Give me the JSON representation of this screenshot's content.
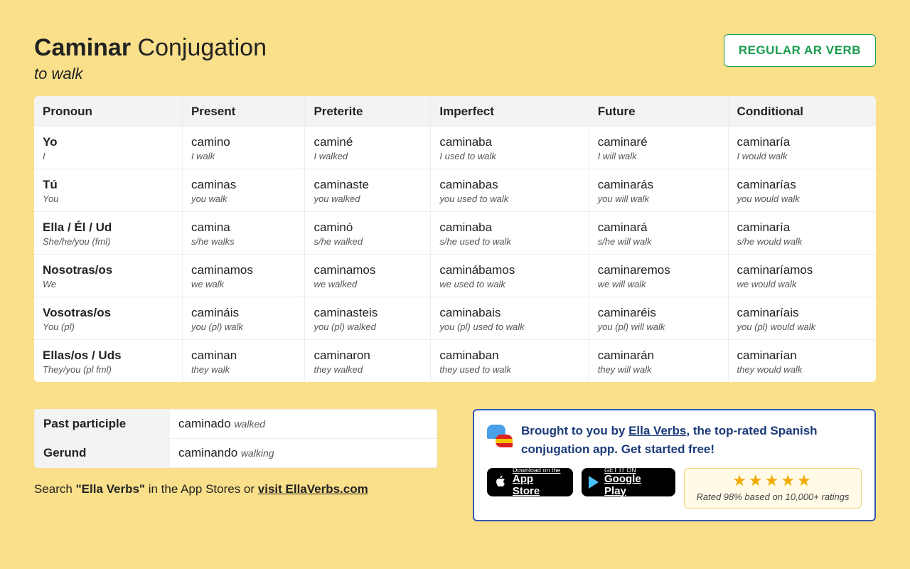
{
  "header": {
    "verb": "Caminar",
    "word": "Conjugation",
    "translation": "to walk",
    "badge": "REGULAR AR VERB"
  },
  "columns": [
    "Pronoun",
    "Present",
    "Preterite",
    "Imperfect",
    "Future",
    "Conditional"
  ],
  "rows": [
    {
      "pronoun": {
        "main": "Yo",
        "sub": "I"
      },
      "cells": [
        {
          "main": "camino",
          "sub": "I walk"
        },
        {
          "main": "caminé",
          "sub": "I walked"
        },
        {
          "main": "caminaba",
          "sub": "I used to walk"
        },
        {
          "main": "caminaré",
          "sub": "I will walk"
        },
        {
          "main": "caminaría",
          "sub": "I would walk"
        }
      ]
    },
    {
      "pronoun": {
        "main": "Tú",
        "sub": "You"
      },
      "cells": [
        {
          "main": "caminas",
          "sub": "you walk"
        },
        {
          "main": "caminaste",
          "sub": "you walked"
        },
        {
          "main": "caminabas",
          "sub": "you used to walk"
        },
        {
          "main": "caminarás",
          "sub": "you will walk"
        },
        {
          "main": "caminarías",
          "sub": "you would walk"
        }
      ]
    },
    {
      "pronoun": {
        "main": "Ella / Él / Ud",
        "sub": "She/he/you (fml)"
      },
      "cells": [
        {
          "main": "camina",
          "sub": "s/he walks"
        },
        {
          "main": "caminó",
          "sub": "s/he walked"
        },
        {
          "main": "caminaba",
          "sub": "s/he used to walk"
        },
        {
          "main": "caminará",
          "sub": "s/he will walk"
        },
        {
          "main": "caminaría",
          "sub": "s/he would walk"
        }
      ]
    },
    {
      "pronoun": {
        "main": "Nosotras/os",
        "sub": "We"
      },
      "cells": [
        {
          "main": "caminamos",
          "sub": "we walk"
        },
        {
          "main": "caminamos",
          "sub": "we walked"
        },
        {
          "main": "caminábamos",
          "sub": "we used to walk"
        },
        {
          "main": "caminaremos",
          "sub": "we will walk"
        },
        {
          "main": "caminaríamos",
          "sub": "we would walk"
        }
      ]
    },
    {
      "pronoun": {
        "main": "Vosotras/os",
        "sub": "You (pl)"
      },
      "cells": [
        {
          "main": "camináis",
          "sub": "you (pl) walk"
        },
        {
          "main": "caminasteis",
          "sub": "you (pl) walked"
        },
        {
          "main": "caminabais",
          "sub": "you (pl) used to walk"
        },
        {
          "main": "caminaréis",
          "sub": "you (pl) will walk"
        },
        {
          "main": "caminaríais",
          "sub": "you (pl) would walk"
        }
      ]
    },
    {
      "pronoun": {
        "main": "Ellas/os / Uds",
        "sub": "They/you (pl fml)"
      },
      "cells": [
        {
          "main": "caminan",
          "sub": "they walk"
        },
        {
          "main": "caminaron",
          "sub": "they walked"
        },
        {
          "main": "caminaban",
          "sub": "they used to walk"
        },
        {
          "main": "caminarán",
          "sub": "they will walk"
        },
        {
          "main": "caminarían",
          "sub": "they would walk"
        }
      ]
    }
  ],
  "participles": [
    {
      "label": "Past participle",
      "form": "caminado",
      "tr": "walked"
    },
    {
      "label": "Gerund",
      "form": "caminando",
      "tr": "walking"
    }
  ],
  "search_line": {
    "prefix": "Search ",
    "bold": "\"Ella Verbs\"",
    "mid": " in the App Stores or ",
    "link": "visit EllaVerbs.com"
  },
  "promo": {
    "t1": "Brought to you by ",
    "link": "Ella Verbs",
    "t2": ", the top-rated Spanish conjugation app. Get started free!",
    "appstore_small": "Download on the",
    "appstore_big": "App Store",
    "play_small": "GET IT ON",
    "play_big": "Google Play",
    "stars": "★★★★★",
    "rating": "Rated 98% based on 10,000+ ratings"
  }
}
